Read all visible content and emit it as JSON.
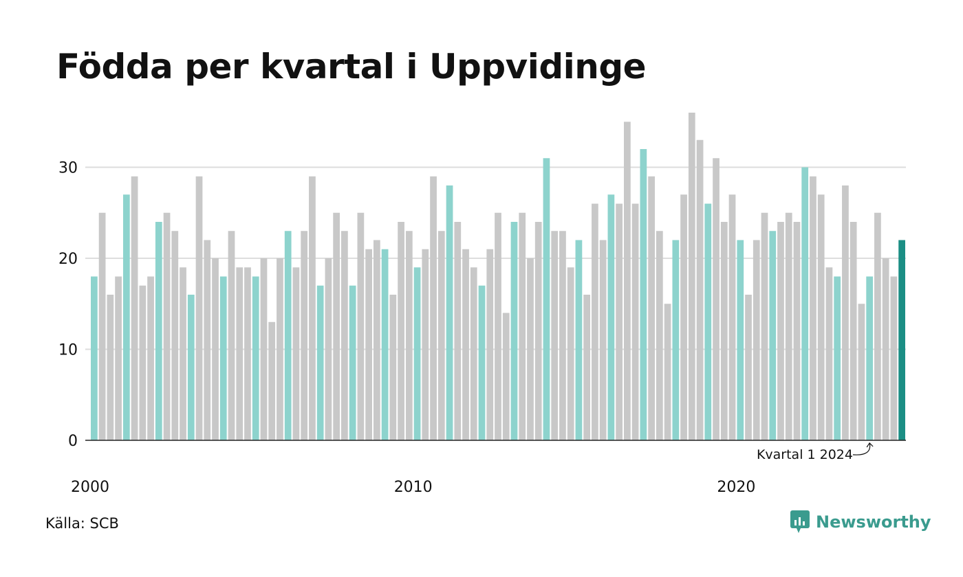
{
  "title": "Födda per kvartal i Uppvidinge",
  "source": "Källa: SCB",
  "brand": {
    "name": "Newsworthy",
    "icon": "newsworthy-logo-icon"
  },
  "colors": {
    "highlight": "#8dd3cd",
    "other": "#c8c8c8",
    "latest": "#1b8e84",
    "axis": "#222222",
    "grid": "#dddddd",
    "brand": "#3a9b8e"
  },
  "chart_data": {
    "type": "bar",
    "title": "Födda per kvartal i Uppvidinge",
    "xlabel": "",
    "ylabel": "",
    "ylim": [
      0,
      36
    ],
    "yticks": [
      0,
      10,
      20,
      30
    ],
    "x_tick_labels": [
      {
        "label": "2000",
        "index": 0
      },
      {
        "label": "2010",
        "index": 40
      },
      {
        "label": "2020",
        "index": 80
      }
    ],
    "grid": true,
    "highlight_quarter": 1,
    "start": {
      "year": 2000,
      "quarter": 1
    },
    "annotation": {
      "text": "Kvartal 1 2024",
      "index": 96
    },
    "values": [
      18,
      25,
      16,
      18,
      27,
      29,
      17,
      18,
      24,
      25,
      23,
      19,
      16,
      29,
      22,
      20,
      18,
      23,
      19,
      19,
      18,
      20,
      13,
      20,
      23,
      19,
      23,
      29,
      17,
      20,
      25,
      23,
      17,
      25,
      21,
      22,
      21,
      16,
      24,
      23,
      19,
      21,
      29,
      23,
      28,
      24,
      21,
      19,
      17,
      21,
      25,
      14,
      24,
      25,
      20,
      24,
      31,
      23,
      23,
      19,
      22,
      16,
      26,
      22,
      27,
      26,
      35,
      26,
      32,
      29,
      23,
      15,
      22,
      27,
      36,
      33,
      26,
      31,
      24,
      27,
      22,
      16,
      22,
      25,
      23,
      24,
      25,
      24,
      30,
      29,
      27,
      19,
      18,
      28,
      24,
      15,
      18,
      25,
      20,
      18,
      22
    ]
  }
}
